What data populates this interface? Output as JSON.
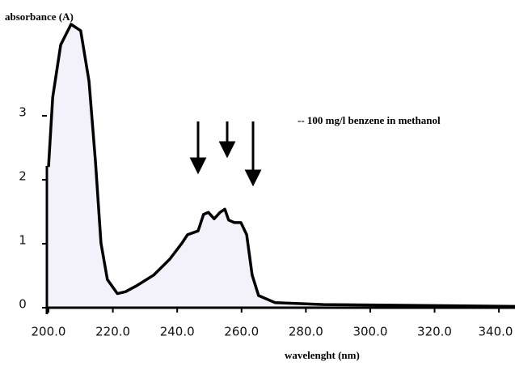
{
  "chart_data": {
    "type": "line",
    "ylabel": "absorbance (A)",
    "xlabel": "wavelenght (nm)",
    "annotation": "-- 100 mg/l benzene in methanol",
    "x": [
      200,
      201.3,
      203.8,
      207,
      210,
      212.6,
      214.6,
      216.3,
      218.3,
      221.4,
      223.9,
      227.6,
      232.7,
      237.7,
      241.5,
      243.2,
      246.5,
      248.2,
      249.7,
      251.5,
      253.3,
      254.8,
      256,
      257.8,
      259.8,
      261.6,
      263.3,
      265.3,
      270.4,
      285.4,
      345
    ],
    "series": [
      {
        "color": "#000000",
        "fill": "#f3f1f9",
        "values": [
          2.2,
          3.29,
          4.11,
          4.43,
          4.33,
          3.54,
          2.28,
          1.01,
          0.44,
          0.22,
          0.25,
          0.35,
          0.51,
          0.76,
          1.01,
          1.14,
          1.2,
          1.46,
          1.49,
          1.39,
          1.49,
          1.54,
          1.37,
          1.33,
          1.33,
          1.14,
          0.51,
          0.19,
          0.08,
          0.05,
          0.02
        ]
      }
    ],
    "xlim": [
      200,
      345
    ],
    "ylim": [
      0,
      4.5
    ],
    "xticks": [
      {
        "value": 200,
        "label": "200.0"
      },
      {
        "value": 220,
        "label": "220.0"
      },
      {
        "value": 240,
        "label": "240.0"
      },
      {
        "value": 260,
        "label": "260.0"
      },
      {
        "value": 280,
        "label": "280.0"
      },
      {
        "value": 300,
        "label": "300.0"
      },
      {
        "value": 320,
        "label": "320.0"
      },
      {
        "value": 340,
        "label": "340.0"
      }
    ],
    "yticks": [
      0,
      1,
      2,
      3
    ]
  }
}
